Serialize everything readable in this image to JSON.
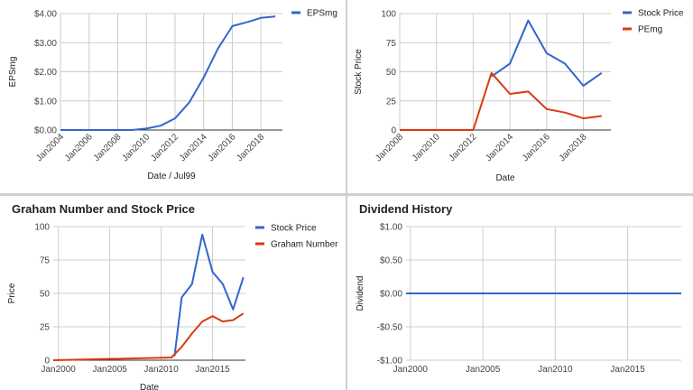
{
  "chart_data": [
    {
      "type": "line",
      "title": "",
      "xlabel": "Date / Jul99",
      "ylabel": "EPSmg",
      "x_ticks": [
        "Jan2004",
        "Jan2006",
        "Jan2008",
        "Jan2010",
        "Jan2012",
        "Jan2014",
        "Jan2016",
        "Jan2018"
      ],
      "y_ticks": [
        "$0.00",
        "$1.00",
        "$2.00",
        "$3.00",
        "$4.00"
      ],
      "xlim": [
        2004,
        2019.5
      ],
      "ylim": [
        0,
        4
      ],
      "legend_position": "top-right",
      "series": [
        {
          "name": "EPSmg",
          "color": "#3366cc",
          "x": [
            2004,
            2005,
            2006,
            2007,
            2008,
            2009,
            2010,
            2011,
            2012,
            2013,
            2014,
            2015,
            2016,
            2017,
            2018,
            2019
          ],
          "y": [
            0,
            0,
            0,
            0,
            0,
            0,
            0.05,
            0.15,
            0.4,
            0.95,
            1.8,
            2.8,
            3.57,
            3.7,
            3.85,
            3.9
          ]
        }
      ]
    },
    {
      "type": "line",
      "title": "",
      "xlabel": "Date",
      "ylabel": "Stock Price",
      "x_ticks": [
        "Jan2008",
        "Jan2010",
        "Jan2012",
        "Jan2014",
        "Jan2016",
        "Jan2018"
      ],
      "y_ticks": [
        "0",
        "25",
        "50",
        "75",
        "100"
      ],
      "xlim": [
        2008,
        2019.5
      ],
      "ylim": [
        0,
        100
      ],
      "legend_position": "top-right",
      "series": [
        {
          "name": "Stock Price",
          "color": "#3366cc",
          "x": [
            2013,
            2014,
            2015,
            2016,
            2017,
            2018,
            2019
          ],
          "y": [
            46,
            57,
            94,
            66,
            57,
            38,
            49
          ]
        },
        {
          "name": "PEmg",
          "color": "#dc3912",
          "x": [
            2008,
            2009,
            2010,
            2011,
            2012,
            2013,
            2014,
            2015,
            2016,
            2017,
            2018,
            2019
          ],
          "y": [
            0,
            0,
            0,
            0,
            0,
            49,
            31,
            33,
            18,
            15,
            10,
            12
          ]
        }
      ]
    },
    {
      "type": "line",
      "title": "Graham Number and Stock Price",
      "xlabel": "Date",
      "ylabel": "Price",
      "x_ticks": [
        "Jan2000",
        "Jan2005",
        "Jan2010",
        "Jan2015"
      ],
      "y_ticks": [
        "0",
        "25",
        "50",
        "75",
        "100"
      ],
      "xlim": [
        1999.5,
        2018.2
      ],
      "ylim": [
        0,
        100
      ],
      "legend_position": "top-right",
      "series": [
        {
          "name": "Stock Price",
          "color": "#3366cc",
          "x": [
            2011.3,
            2012,
            2013,
            2014,
            2015,
            2016,
            2017,
            2018
          ],
          "y": [
            3,
            47,
            57,
            94,
            66,
            57,
            38,
            62
          ]
        },
        {
          "name": "Graham Number",
          "color": "#dc3912",
          "x": [
            1999.5,
            2011,
            2012,
            2013,
            2014,
            2015,
            2016,
            2017,
            2018
          ],
          "y": [
            0,
            2,
            10,
            20,
            29,
            33,
            29,
            30,
            35
          ]
        }
      ]
    },
    {
      "type": "line",
      "title": "Dividend History",
      "xlabel": "",
      "ylabel": "Dividend",
      "x_ticks": [
        "Jan2000",
        "Jan2005",
        "Jan2010",
        "Jan2015"
      ],
      "y_ticks": [
        "-$1.00",
        "-$0.50",
        "$0.00",
        "$0.50",
        "$1.00"
      ],
      "xlim": [
        1999.7,
        2018.7
      ],
      "ylim": [
        -1,
        1
      ],
      "legend_position": "none",
      "series": [
        {
          "name": "",
          "color": "#3366cc",
          "x": [
            1999.7,
            2018.7
          ],
          "y": [
            0,
            0
          ]
        }
      ]
    }
  ]
}
